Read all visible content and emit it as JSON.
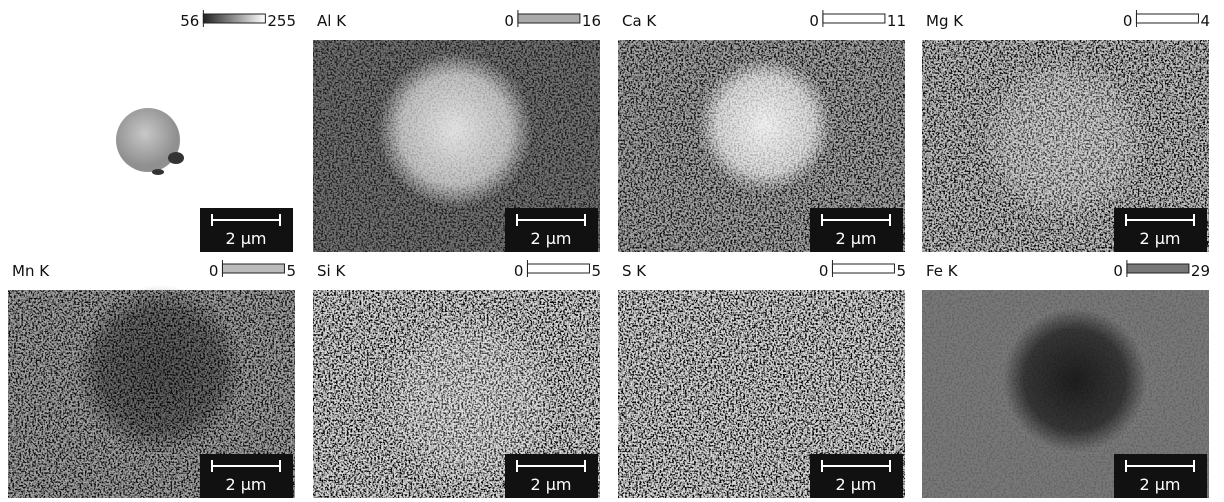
{
  "panels": [
    {
      "scale_min": 56,
      "scale_max": 255,
      "scale_bar": "2 µm"
    },
    {
      "element": "Al K",
      "scale_min": 0,
      "scale_max": 16,
      "scale_bar": "2 µm"
    },
    {
      "element": "Ca K",
      "scale_min": 0,
      "scale_max": 11,
      "scale_bar": "2 µm"
    },
    {
      "element": "Mg K",
      "scale_min": 0,
      "scale_max": 4,
      "scale_bar": "2 µm"
    },
    {
      "element": "Mn K",
      "scale_min": 0,
      "scale_max": 5,
      "scale_bar": "2 µm"
    },
    {
      "element": "Si K",
      "scale_min": 0,
      "scale_max": 5,
      "scale_bar": "2 µm"
    },
    {
      "element": "S K",
      "scale_min": 0,
      "scale_max": 5,
      "scale_bar": "2 µm"
    },
    {
      "element": "Fe K",
      "scale_min": 0,
      "scale_max": 29,
      "scale_bar": "2 µm"
    }
  ]
}
